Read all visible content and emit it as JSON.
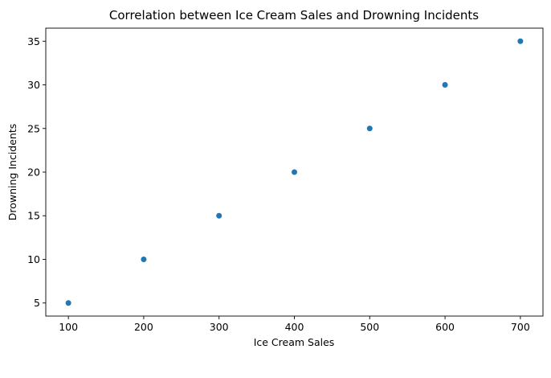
{
  "chart_data": {
    "type": "scatter",
    "title": "Correlation between Ice Cream Sales and Drowning Incidents",
    "xlabel": "Ice Cream Sales",
    "ylabel": "Drowning Incidents",
    "x": [
      100,
      200,
      300,
      400,
      500,
      600,
      700
    ],
    "y": [
      5,
      10,
      15,
      20,
      25,
      30,
      35
    ],
    "xlim": [
      70,
      730
    ],
    "ylim": [
      3.5,
      36.5
    ],
    "xticks": [
      "100",
      "200",
      "300",
      "400",
      "500",
      "600",
      "700"
    ],
    "yticks": [
      "5",
      "10",
      "15",
      "20",
      "25",
      "30",
      "35"
    ],
    "grid": false,
    "legend": "none",
    "marker_color": "#1f77b4"
  }
}
